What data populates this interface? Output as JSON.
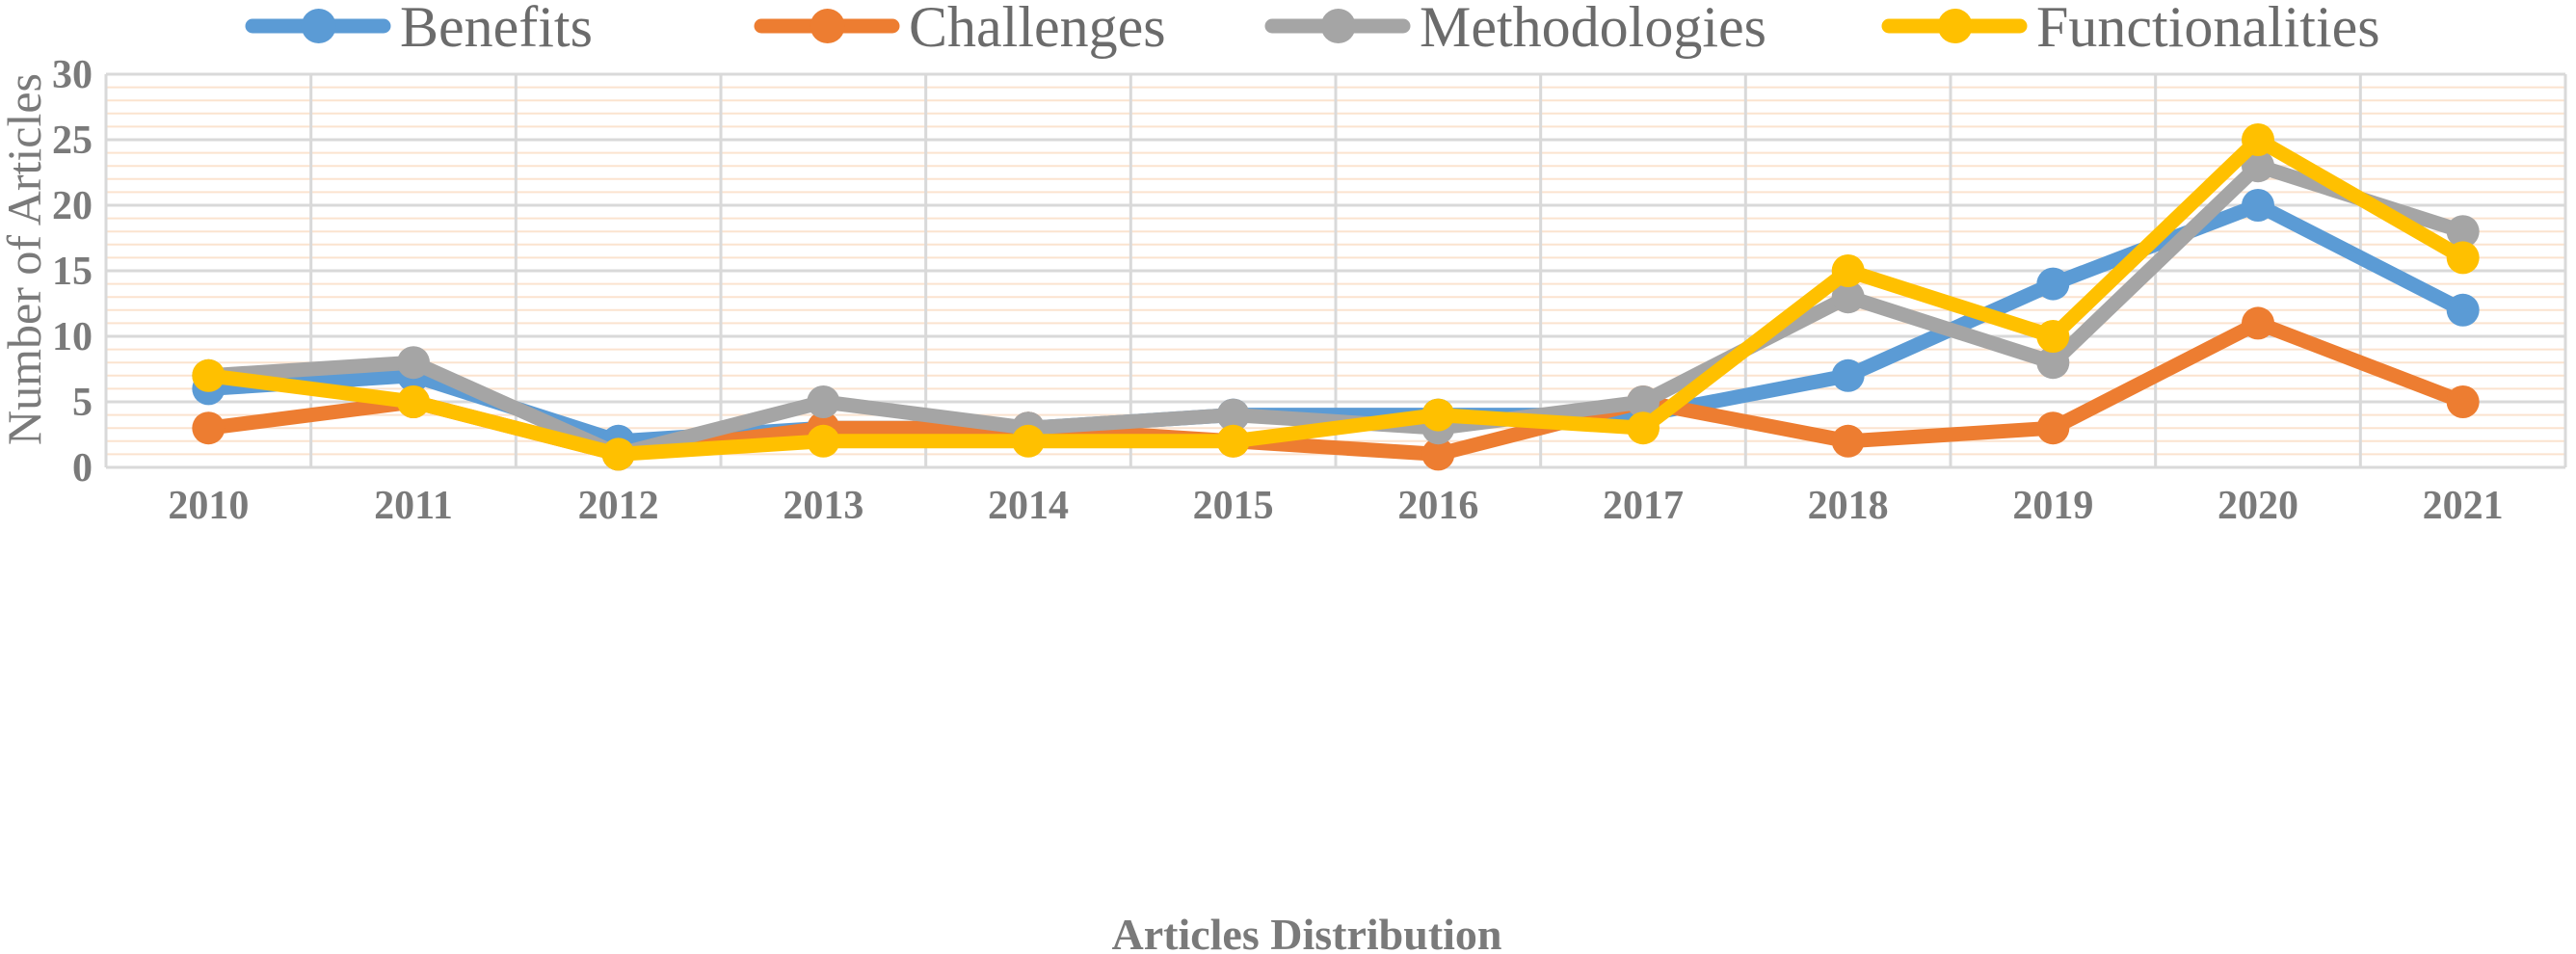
{
  "chart_data": {
    "type": "line",
    "title": "",
    "xlabel": "Articles Distribution",
    "ylabel": "Number of Articles",
    "categories": [
      "2010",
      "2011",
      "2012",
      "2013",
      "2014",
      "2015",
      "2016",
      "2017",
      "2018",
      "2019",
      "2020",
      "2021"
    ],
    "ylim": [
      0,
      30
    ],
    "yticks": [
      0,
      5,
      10,
      15,
      20,
      25,
      30
    ],
    "grid": true,
    "legend_position": "top",
    "series": [
      {
        "name": "Benefits",
        "color": "#5b9bd5",
        "values": [
          6,
          7,
          2,
          3,
          3,
          4,
          4,
          4,
          7,
          14,
          20,
          12
        ]
      },
      {
        "name": "Challenges",
        "color": "#ed7d31",
        "values": [
          3,
          5,
          1,
          3,
          3,
          2,
          1,
          5,
          2,
          3,
          11,
          5
        ]
      },
      {
        "name": "Methodologies",
        "color": "#a5a5a5",
        "values": [
          7,
          8,
          1,
          5,
          3,
          4,
          3,
          5,
          13,
          8,
          23,
          18
        ]
      },
      {
        "name": "Functionalities",
        "color": "#ffc000",
        "values": [
          7,
          5,
          1,
          2,
          2,
          2,
          4,
          3,
          15,
          10,
          25,
          16
        ]
      }
    ]
  }
}
